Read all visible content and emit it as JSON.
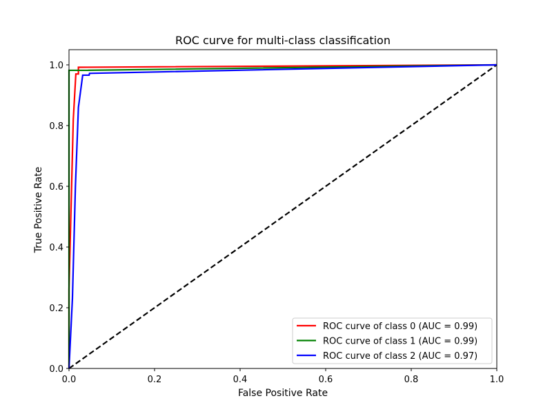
{
  "chart_data": {
    "type": "line",
    "title": "ROC curve for multi-class classification",
    "xlabel": "False Positive Rate",
    "ylabel": "True Positive Rate",
    "xlim": [
      0.0,
      1.0
    ],
    "ylim": [
      0.0,
      1.05
    ],
    "xticks": [
      "0.0",
      "0.2",
      "0.4",
      "0.6",
      "0.8",
      "1.0"
    ],
    "yticks": [
      "0.0",
      "0.2",
      "0.4",
      "0.6",
      "0.8",
      "1.0"
    ],
    "grid": false,
    "legend_position": "lower-right",
    "series": [
      {
        "name": "ROC curve of class 0 (AUC = 0.99)",
        "color": "#ff0000",
        "x": [
          0.0,
          0.0,
          0.01,
          0.016,
          0.016,
          0.022,
          0.022,
          1.0
        ],
        "y": [
          0.0,
          0.26,
          0.82,
          0.97,
          0.97,
          0.97,
          0.992,
          1.0
        ]
      },
      {
        "name": "ROC curve of class 1 (AUC = 0.99)",
        "color": "#008000",
        "x": [
          0.0,
          0.0,
          0.04,
          1.0
        ],
        "y": [
          0.0,
          0.982,
          0.982,
          1.0
        ]
      },
      {
        "name": "ROC curve of class 2 (AUC = 0.97)",
        "color": "#0000ff",
        "x": [
          0.0,
          0.008,
          0.015,
          0.022,
          0.032,
          0.032,
          0.047,
          0.048,
          1.0
        ],
        "y": [
          0.0,
          0.23,
          0.6,
          0.86,
          0.966,
          0.966,
          0.966,
          0.972,
          1.0
        ]
      }
    ],
    "reference_line": {
      "x": [
        0.0,
        1.0
      ],
      "y": [
        0.0,
        1.0
      ],
      "color": "#000000",
      "style": "dashed"
    }
  }
}
